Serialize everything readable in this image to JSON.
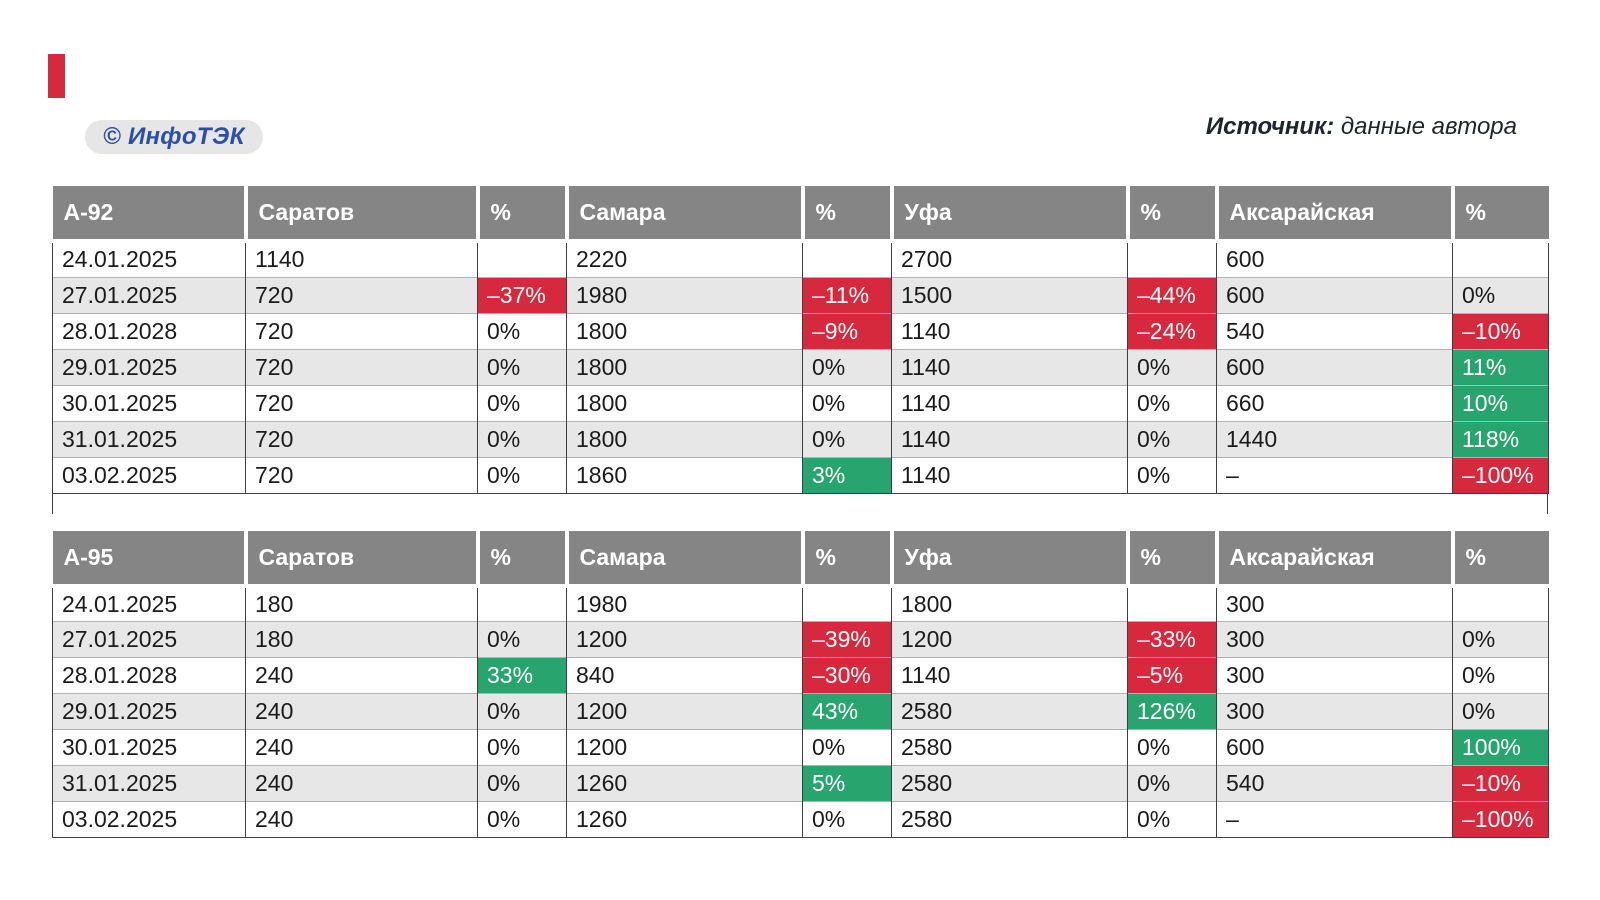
{
  "badge": {
    "text": "© ИнфоТЭК"
  },
  "source": {
    "label": "Источник:",
    "value": " данные автора"
  },
  "colors": {
    "negative": "#d7293d",
    "positive": "#28a56f",
    "header_bg": "#858585",
    "stripe": "#e7e7e7",
    "accent_bar": "#d7293d",
    "badge_text": "#2b4fa5"
  },
  "tables": [
    {
      "title": "А-92",
      "headers": [
        "А-92",
        "Саратов",
        "%",
        "Самара",
        "%",
        "Уфа",
        "%",
        "Аксарайская",
        "%"
      ],
      "rows": [
        {
          "cells": [
            {
              "v": "24.01.2025"
            },
            {
              "v": "1140"
            },
            {
              "v": ""
            },
            {
              "v": "2220"
            },
            {
              "v": ""
            },
            {
              "v": "2700"
            },
            {
              "v": ""
            },
            {
              "v": "600"
            },
            {
              "v": ""
            }
          ]
        },
        {
          "cells": [
            {
              "v": "27.01.2025"
            },
            {
              "v": "720"
            },
            {
              "v": "–37%",
              "t": "down"
            },
            {
              "v": "1980"
            },
            {
              "v": "–11%",
              "t": "down"
            },
            {
              "v": "1500"
            },
            {
              "v": "–44%",
              "t": "down"
            },
            {
              "v": "600"
            },
            {
              "v": "0%"
            }
          ]
        },
        {
          "cells": [
            {
              "v": "28.01.2028"
            },
            {
              "v": "720"
            },
            {
              "v": "0%"
            },
            {
              "v": "1800"
            },
            {
              "v": "–9%",
              "t": "down"
            },
            {
              "v": "1140"
            },
            {
              "v": "–24%",
              "t": "down"
            },
            {
              "v": "540"
            },
            {
              "v": "–10%",
              "t": "down"
            }
          ]
        },
        {
          "cells": [
            {
              "v": "29.01.2025"
            },
            {
              "v": "720"
            },
            {
              "v": "0%"
            },
            {
              "v": "1800"
            },
            {
              "v": "0%"
            },
            {
              "v": "1140"
            },
            {
              "v": "0%"
            },
            {
              "v": "600"
            },
            {
              "v": "11%",
              "t": "up"
            }
          ]
        },
        {
          "cells": [
            {
              "v": "30.01.2025"
            },
            {
              "v": "720"
            },
            {
              "v": "0%"
            },
            {
              "v": "1800"
            },
            {
              "v": "0%"
            },
            {
              "v": "1140"
            },
            {
              "v": "0%"
            },
            {
              "v": "660"
            },
            {
              "v": "10%",
              "t": "up"
            }
          ]
        },
        {
          "cells": [
            {
              "v": "31.01.2025"
            },
            {
              "v": "720"
            },
            {
              "v": "0%"
            },
            {
              "v": "1800"
            },
            {
              "v": "0%"
            },
            {
              "v": "1140"
            },
            {
              "v": "0%"
            },
            {
              "v": "1440"
            },
            {
              "v": "118%",
              "t": "up"
            }
          ]
        },
        {
          "cells": [
            {
              "v": "03.02.2025"
            },
            {
              "v": "720"
            },
            {
              "v": "0%"
            },
            {
              "v": "1860"
            },
            {
              "v": "3%",
              "t": "up"
            },
            {
              "v": "1140"
            },
            {
              "v": "0%"
            },
            {
              "v": "–"
            },
            {
              "v": "–100%",
              "t": "down"
            }
          ]
        }
      ]
    },
    {
      "title": "А-95",
      "headers": [
        "А-95",
        "Саратов",
        "%",
        "Самара",
        "%",
        "Уфа",
        "%",
        "Аксарайская",
        "%"
      ],
      "rows": [
        {
          "cells": [
            {
              "v": "24.01.2025"
            },
            {
              "v": "180"
            },
            {
              "v": ""
            },
            {
              "v": "1980"
            },
            {
              "v": ""
            },
            {
              "v": "1800"
            },
            {
              "v": ""
            },
            {
              "v": "300"
            },
            {
              "v": ""
            }
          ]
        },
        {
          "cells": [
            {
              "v": "27.01.2025"
            },
            {
              "v": "180"
            },
            {
              "v": "0%"
            },
            {
              "v": "1200"
            },
            {
              "v": "–39%",
              "t": "down"
            },
            {
              "v": "1200"
            },
            {
              "v": "–33%",
              "t": "down"
            },
            {
              "v": "300"
            },
            {
              "v": "0%"
            }
          ]
        },
        {
          "cells": [
            {
              "v": "28.01.2028"
            },
            {
              "v": "240"
            },
            {
              "v": "33%",
              "t": "up"
            },
            {
              "v": "840"
            },
            {
              "v": "–30%",
              "t": "down"
            },
            {
              "v": "1140"
            },
            {
              "v": "–5%",
              "t": "down"
            },
            {
              "v": "300"
            },
            {
              "v": "0%"
            }
          ]
        },
        {
          "cells": [
            {
              "v": "29.01.2025"
            },
            {
              "v": "240"
            },
            {
              "v": "0%"
            },
            {
              "v": "1200"
            },
            {
              "v": "43%",
              "t": "up"
            },
            {
              "v": "2580"
            },
            {
              "v": "126%",
              "t": "up"
            },
            {
              "v": "300"
            },
            {
              "v": "0%"
            }
          ]
        },
        {
          "cells": [
            {
              "v": "30.01.2025"
            },
            {
              "v": "240"
            },
            {
              "v": "0%"
            },
            {
              "v": "1200"
            },
            {
              "v": "0%"
            },
            {
              "v": "2580"
            },
            {
              "v": "0%"
            },
            {
              "v": "600"
            },
            {
              "v": "100%",
              "t": "up"
            }
          ]
        },
        {
          "cells": [
            {
              "v": "31.01.2025"
            },
            {
              "v": "240"
            },
            {
              "v": "0%"
            },
            {
              "v": "1260"
            },
            {
              "v": "5%",
              "t": "up"
            },
            {
              "v": "2580"
            },
            {
              "v": "0%"
            },
            {
              "v": "540"
            },
            {
              "v": "–10%",
              "t": "down"
            }
          ]
        },
        {
          "cells": [
            {
              "v": "03.02.2025"
            },
            {
              "v": "240"
            },
            {
              "v": "0%"
            },
            {
              "v": "1260"
            },
            {
              "v": "0%"
            },
            {
              "v": "2580"
            },
            {
              "v": "0%"
            },
            {
              "v": "–"
            },
            {
              "v": "–100%",
              "t": "down"
            }
          ]
        }
      ]
    }
  ]
}
